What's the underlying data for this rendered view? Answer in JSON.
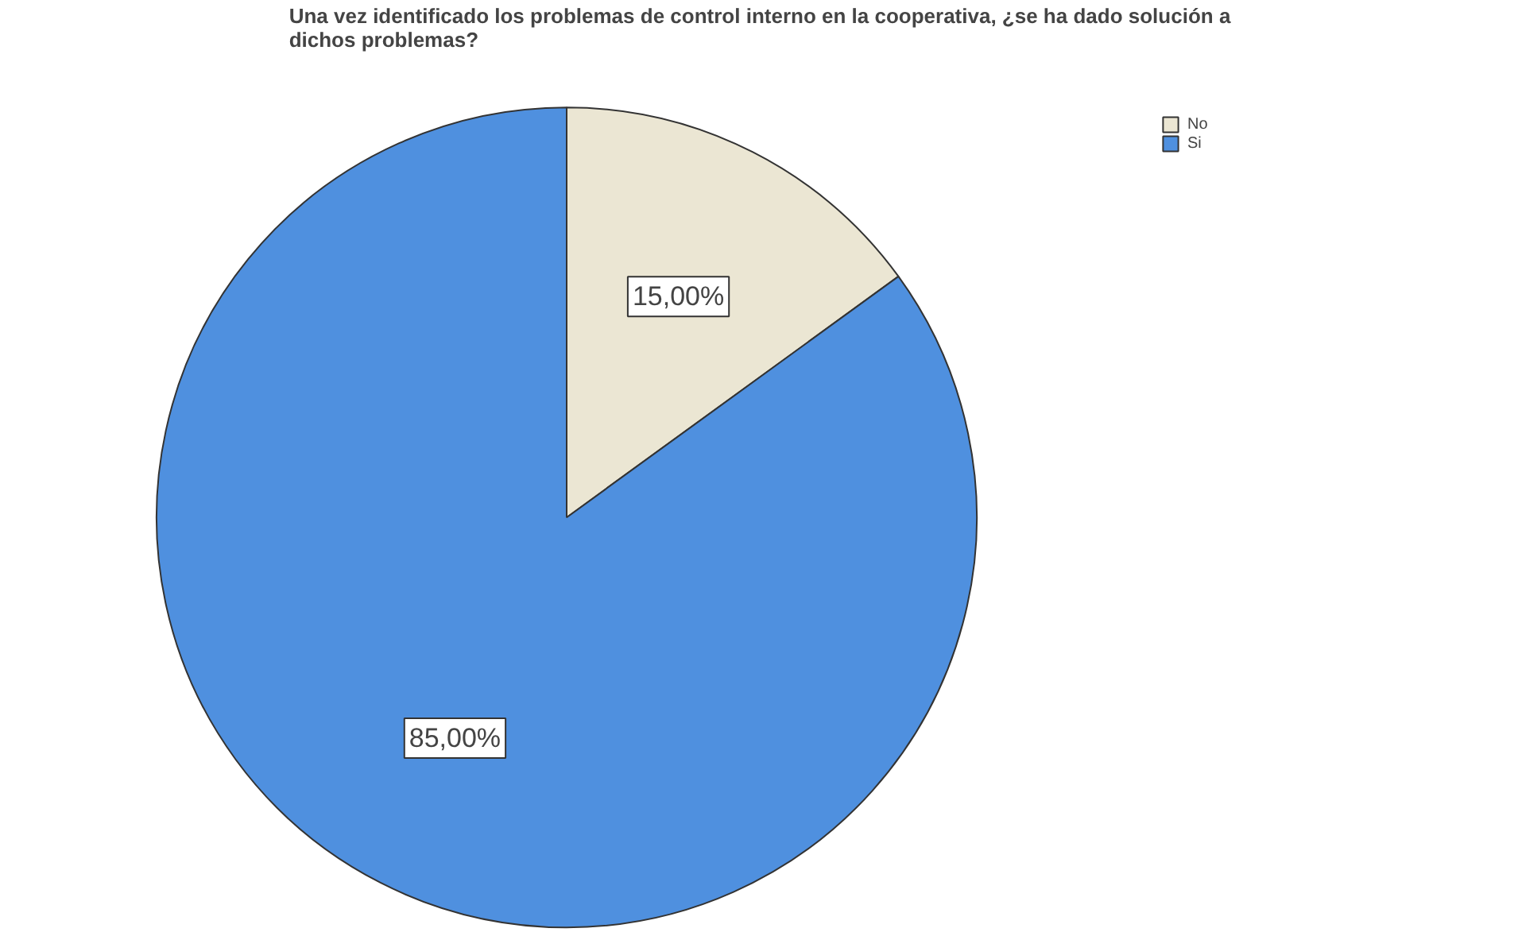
{
  "chart_data": {
    "type": "pie",
    "title": "Una vez identificado los problemas de control interno en la cooperativa, ¿se ha dado solución a dichos problemas?",
    "categories": [
      "No",
      "Si"
    ],
    "values": [
      15,
      85
    ],
    "colors": [
      "#ebe6d3",
      "#4f90df"
    ],
    "value_labels": [
      "15,00%",
      "85,00%"
    ],
    "legend": "top right"
  }
}
